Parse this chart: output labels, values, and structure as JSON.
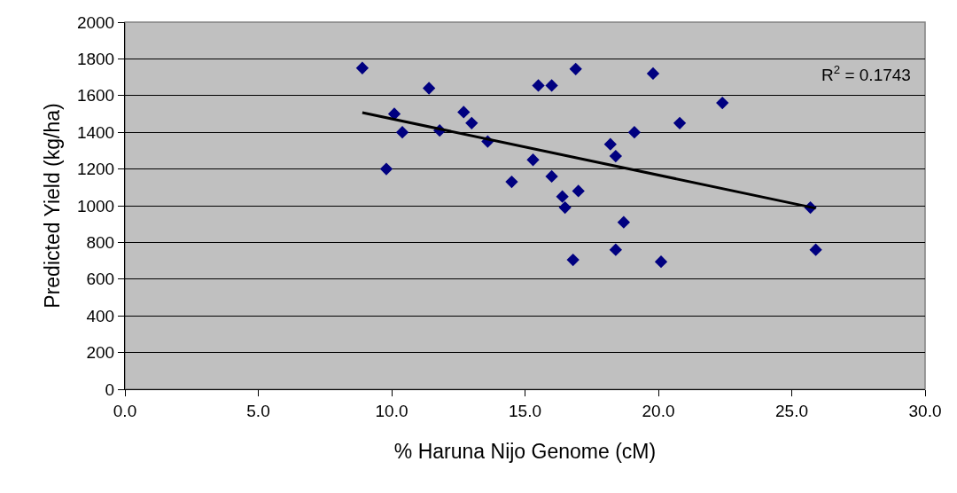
{
  "chart_data": {
    "type": "scatter",
    "xlabel": "% Haruna Nijo Genome (cM)",
    "ylabel": "Predicted Yield (kg/ha)",
    "annotations": [
      "R$^{2}$ = 0.1743"
    ],
    "xlim": [
      0,
      30
    ],
    "xticks": [
      {
        "value": 0,
        "label": "0.0"
      },
      {
        "value": 5,
        "label": "5.0"
      },
      {
        "value": 10,
        "label": "10.0"
      },
      {
        "value": 15,
        "label": "15.0"
      },
      {
        "value": 20,
        "label": "20.0"
      },
      {
        "value": 25,
        "label": "25.0"
      },
      {
        "value": 30,
        "label": "30.0"
      }
    ],
    "ylim": [
      0,
      2000
    ],
    "yticks": [
      0,
      200,
      400,
      600,
      800,
      1000,
      1200,
      1400,
      1600,
      1800,
      2000
    ],
    "grid": "y",
    "marker": "diamond",
    "series": [
      {
        "color": "#000080",
        "x": [
          8.9,
          9.8,
          10.1,
          10.4,
          11.4,
          11.8,
          12.7,
          13.0,
          13.6,
          14.5,
          15.3,
          15.5,
          16.0,
          16.0,
          16.4,
          16.5,
          16.8,
          16.9,
          17.0,
          18.2,
          18.4,
          18.4,
          18.7,
          19.1,
          19.8,
          20.1,
          20.8,
          22.4,
          25.7,
          25.9
        ],
        "values": [
          1750,
          1200,
          1500,
          1400,
          1640,
          1410,
          1510,
          1450,
          1350,
          1130,
          1250,
          1655,
          1655,
          1160,
          1050,
          990,
          705,
          1745,
          1080,
          1335,
          1270,
          760,
          910,
          1400,
          1720,
          695,
          1450,
          1560,
          990,
          760
        ]
      },
      {
        "type": "line",
        "color": "#000000",
        "marker": "none",
        "line_style": "solid",
        "x": [
          8.9,
          25.9
        ],
        "values": [
          1507,
          986
        ]
      }
    ]
  }
}
